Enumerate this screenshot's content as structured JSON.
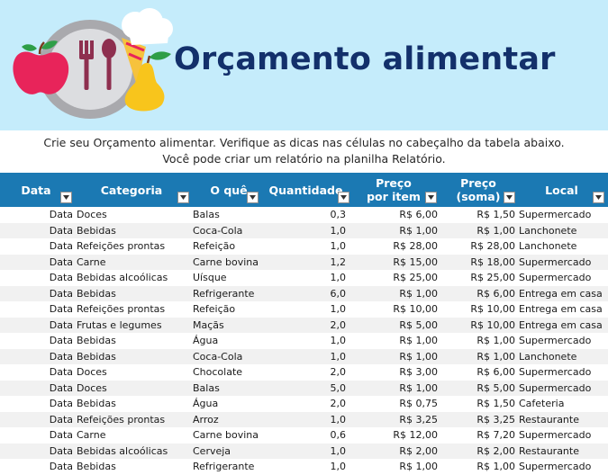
{
  "banner": {
    "title": "Orçamento alimentar"
  },
  "intro": {
    "line1": "Crie seu Orçamento alimentar. Verifique as dicas nas células no cabeçalho da tabela abaixo.",
    "line2": "Você pode criar um relatório na planilha Relatório."
  },
  "colors": {
    "banner_bg": "#c5ecfb",
    "title": "#13306b",
    "header_bg": "#1b79b3",
    "row_alt": "#f1f1f1"
  },
  "icons": [
    "apple-icon",
    "plate-icon",
    "fork-icon",
    "spoon-icon",
    "chef-hat-icon",
    "pear-icon",
    "filter-dropdown-icon"
  ],
  "table": {
    "headers": [
      {
        "key": "date",
        "label": "Data"
      },
      {
        "key": "category",
        "label": "Categoria"
      },
      {
        "key": "what",
        "label": "O quê"
      },
      {
        "key": "qty",
        "label": "Quantidade"
      },
      {
        "key": "price",
        "label": "Preço\npor item"
      },
      {
        "key": "sum",
        "label": "Preço\n(soma)"
      },
      {
        "key": "place",
        "label": "Local"
      }
    ],
    "rows": [
      [
        "Data",
        "Doces",
        "Balas",
        "0,3",
        "R$ 6,00",
        "R$ 1,50",
        "Supermercado"
      ],
      [
        "Data",
        "Bebidas",
        "Coca-Cola",
        "1,0",
        "R$ 1,00",
        "R$ 1,00",
        "Lanchonete"
      ],
      [
        "Data",
        "Refeições prontas",
        "Refeição",
        "1,0",
        "R$ 28,00",
        "R$ 28,00",
        "Lanchonete"
      ],
      [
        "Data",
        "Carne",
        "Carne bovina",
        "1,2",
        "R$ 15,00",
        "R$ 18,00",
        "Supermercado"
      ],
      [
        "Data",
        "Bebidas alcoólicas",
        "Uísque",
        "1,0",
        "R$ 25,00",
        "R$ 25,00",
        "Supermercado"
      ],
      [
        "Data",
        "Bebidas",
        "Refrigerante",
        "6,0",
        "R$ 1,00",
        "R$ 6,00",
        "Entrega em casa"
      ],
      [
        "Data",
        "Refeições prontas",
        "Refeição",
        "1,0",
        "R$ 10,00",
        "R$ 10,00",
        "Entrega em casa"
      ],
      [
        "Data",
        "Frutas e legumes",
        "Maçãs",
        "2,0",
        "R$ 5,00",
        "R$ 10,00",
        "Entrega em casa"
      ],
      [
        "Data",
        "Bebidas",
        "Água",
        "1,0",
        "R$ 1,00",
        "R$ 1,00",
        "Supermercado"
      ],
      [
        "Data",
        "Bebidas",
        "Coca-Cola",
        "1,0",
        "R$ 1,00",
        "R$ 1,00",
        "Lanchonete"
      ],
      [
        "Data",
        "Doces",
        "Chocolate",
        "2,0",
        "R$ 3,00",
        "R$ 6,00",
        "Supermercado"
      ],
      [
        "Data",
        "Doces",
        "Balas",
        "5,0",
        "R$ 1,00",
        "R$ 5,00",
        "Supermercado"
      ],
      [
        "Data",
        "Bebidas",
        "Água",
        "2,0",
        "R$ 0,75",
        "R$ 1,50",
        "Cafeteria"
      ],
      [
        "Data",
        "Refeições prontas",
        "Arroz",
        "1,0",
        "R$ 3,25",
        "R$ 3,25",
        "Restaurante"
      ],
      [
        "Data",
        "Carne",
        "Carne bovina",
        "0,6",
        "R$ 12,00",
        "R$ 7,20",
        "Supermercado"
      ],
      [
        "Data",
        "Bebidas alcoólicas",
        "Cerveja",
        "1,0",
        "R$ 2,00",
        "R$ 2,00",
        "Restaurante"
      ],
      [
        "Data",
        "Bebidas",
        "Refrigerante",
        "1,0",
        "R$ 1,00",
        "R$ 1,00",
        "Supermercado"
      ]
    ]
  }
}
